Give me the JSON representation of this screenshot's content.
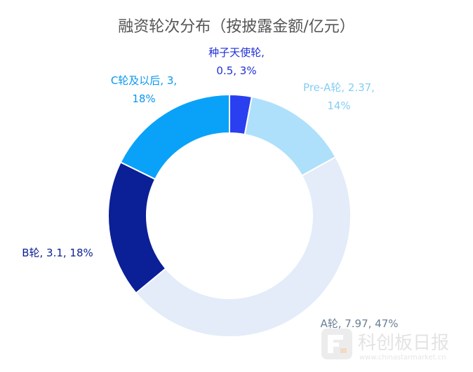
{
  "chart_data": {
    "type": "pie",
    "variant": "donut",
    "title": "融资轮次分布（按披露金额/亿元）",
    "slices": [
      {
        "name": "种子天使轮",
        "value": 0.5,
        "percent": "3%",
        "color": "#2a3ff0",
        "label_lines": [
          "种子天使轮,",
          "0.5, 3%"
        ],
        "label_color": "#1f2fd6"
      },
      {
        "name": "Pre-A轮",
        "value": 2.37,
        "percent": "14%",
        "color": "#aee0fb",
        "label_lines": [
          "Pre-A轮, 2.37,",
          "14%"
        ],
        "label_color": "#86cdf5"
      },
      {
        "name": "A轮",
        "value": 7.97,
        "percent": "47%",
        "color": "#e3ecf8",
        "label_lines": [
          "A轮, 7.97, 47%"
        ],
        "label_color": "#6b7f95"
      },
      {
        "name": "B轮",
        "value": 3.1,
        "percent": "18%",
        "color": "#0b1f96",
        "label_lines": [
          "B轮, 3.1, 18%"
        ],
        "label_color": "#0b1f96"
      },
      {
        "name": "C轮及以后",
        "value": 3,
        "percent": "18%",
        "color": "#0aa2f8",
        "label_lines": [
          "C轮及以后, 3,",
          "18%"
        ],
        "label_color": "#0a97ee"
      }
    ],
    "start_angle_deg": 0,
    "direction": "clockwise",
    "legend": "none"
  },
  "watermark": {
    "text": "科创板日报",
    "url": "www.chinastarmarket.cn",
    "icon": "chinastarmarket-logo-icon"
  }
}
